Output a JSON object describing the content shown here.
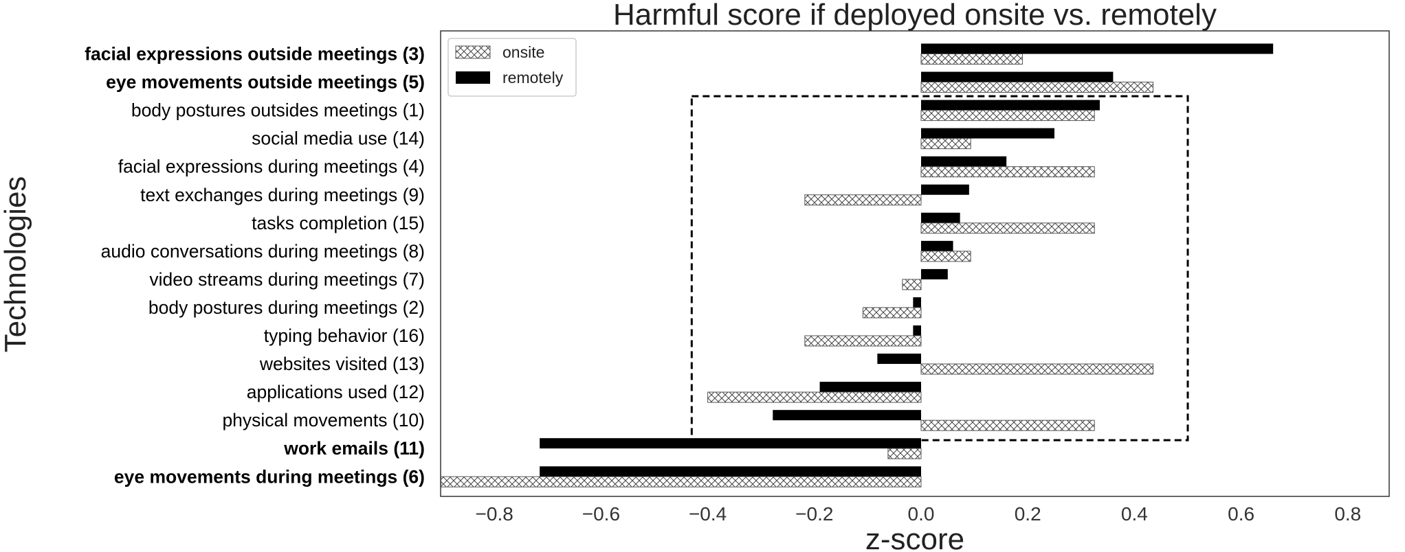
{
  "chart_data": {
    "type": "bar",
    "orientation": "horizontal",
    "title": "Harmful score if deployed onsite vs. remotely",
    "xlabel": "z-score",
    "ylabel": "Technologies",
    "xlim": [
      -0.9,
      0.9
    ],
    "xticks": [
      -0.8,
      -0.6,
      -0.4,
      -0.2,
      0.0,
      0.2,
      0.4,
      0.6,
      0.8
    ],
    "xtick_labels": [
      "−0.8",
      "−0.6",
      "−0.4",
      "−0.2",
      "0.0",
      "0.2",
      "0.4",
      "0.6",
      "0.8"
    ],
    "grid": false,
    "legend_position": "top-left",
    "categories": [
      "facial expressions outside meetings (3)",
      "eye movements outside meetings (5)",
      "body postures outsides meetings (1)",
      "social media use (14)",
      "facial expressions during meetings (4)",
      "text exchanges during meetings (9)",
      "tasks completion (15)",
      "audio conversations during meetings (8)",
      "video streams during meetings (7)",
      "body postures during meetings (2)",
      "typing behavior (16)",
      "websites visited (13)",
      "applications used (12)",
      "physical movements (10)",
      "work emails (11)",
      "eye movements during meetings (6)"
    ],
    "bold_categories": [
      "facial expressions outside meetings (3)",
      "eye movements outside meetings (5)",
      "work emails (11)",
      "eye movements during meetings (6)"
    ],
    "series": [
      {
        "name": "onsite",
        "fill": "hatched",
        "values": [
          0.19,
          0.435,
          0.325,
          0.093,
          0.325,
          -0.218,
          0.325,
          0.093,
          -0.035,
          -0.109,
          -0.218,
          0.435,
          -0.4,
          0.325,
          -0.062,
          -0.9
        ]
      },
      {
        "name": "remotely",
        "fill": "#000000",
        "values": [
          0.66,
          0.36,
          0.335,
          0.25,
          0.16,
          0.09,
          0.073,
          0.06,
          0.05,
          -0.015,
          -0.015,
          -0.082,
          -0.19,
          -0.278,
          -0.715,
          -0.715
        ]
      }
    ],
    "annotation": {
      "type": "dashed-box",
      "x_range": [
        -0.43,
        0.5
      ],
      "rows": [
        "body postures outsides meetings (1)",
        "physical movements (10)"
      ]
    }
  }
}
